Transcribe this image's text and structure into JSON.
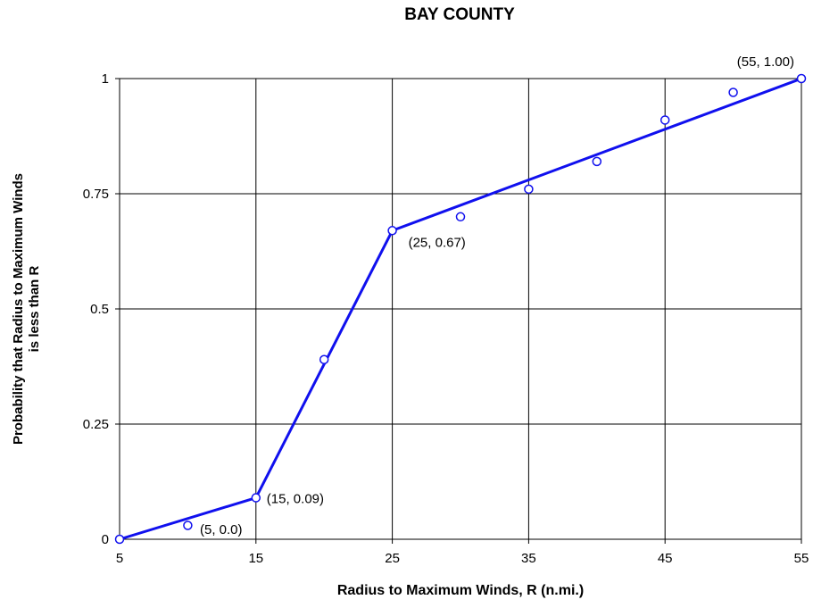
{
  "chart_data": {
    "type": "scatter",
    "title": "BAY COUNTY",
    "xlabel": "Radius to Maximum Winds, R (n.mi.)",
    "ylabel_line1": "Probability that Radius to Maximum Winds",
    "ylabel_line2": "is less than R",
    "xlim": [
      5,
      55
    ],
    "ylim": [
      0,
      1
    ],
    "x_ticks": [
      "5",
      "15",
      "25",
      "35",
      "45",
      "55"
    ],
    "y_ticks": [
      "0",
      "0.25",
      "0.5",
      "0.75",
      "1"
    ],
    "grid": true,
    "series": [
      {
        "kind": "points",
        "color": "#1010ee",
        "points": [
          {
            "x": 5,
            "y": 0.0
          },
          {
            "x": 10,
            "y": 0.03
          },
          {
            "x": 15,
            "y": 0.09
          },
          {
            "x": 20,
            "y": 0.39
          },
          {
            "x": 25,
            "y": 0.67
          },
          {
            "x": 30,
            "y": 0.7
          },
          {
            "x": 35,
            "y": 0.76
          },
          {
            "x": 40,
            "y": 0.82
          },
          {
            "x": 45,
            "y": 0.91
          },
          {
            "x": 50,
            "y": 0.97
          },
          {
            "x": 55,
            "y": 1.0
          }
        ]
      },
      {
        "kind": "line",
        "color": "#1010ee",
        "points": [
          {
            "x": 5,
            "y": 0.0
          },
          {
            "x": 15,
            "y": 0.09
          },
          {
            "x": 25,
            "y": 0.67
          },
          {
            "x": 55,
            "y": 1.0
          }
        ]
      }
    ],
    "annotations": [
      {
        "text": "(5, 0.0)",
        "x": 5,
        "y": 0.0
      },
      {
        "text": "(15, 0.09)",
        "x": 15,
        "y": 0.09
      },
      {
        "text": "(25, 0.67)",
        "x": 25,
        "y": 0.67
      },
      {
        "text": "(55, 1.00)",
        "x": 55,
        "y": 1.0
      }
    ]
  }
}
